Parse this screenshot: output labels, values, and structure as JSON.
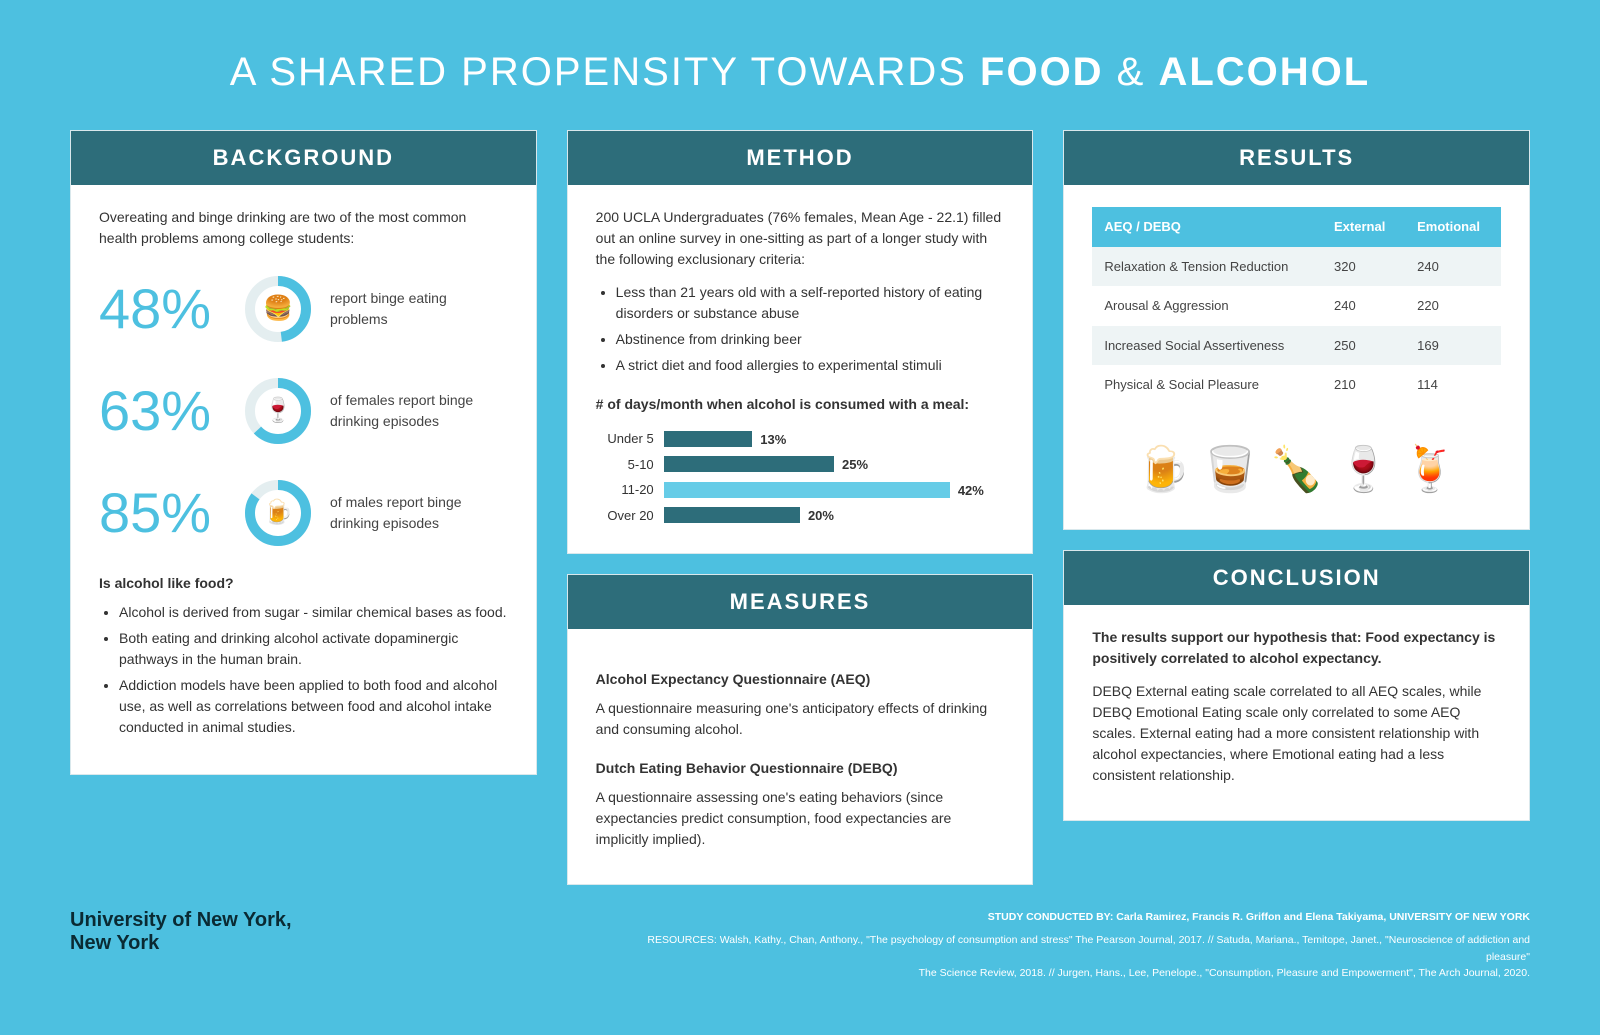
{
  "title_prefix": "A SHARED PROPENSITY TOWARDS ",
  "title_bold1": "FOOD",
  "title_amp": " & ",
  "title_bold2": "ALCOHOL",
  "colors": {
    "page_bg": "#4dc0e0",
    "header_bg": "#2d6d7a",
    "accent": "#4dc0e0",
    "bar_dark": "#2d6d7a",
    "bar_light": "#66cce7",
    "donut_ring": "#e4eef0"
  },
  "background": {
    "header": "BACKGROUND",
    "intro": "Overeating and binge drinking are two of the most common health problems among college students:",
    "stats": [
      {
        "value": "48%",
        "pct": 48,
        "icon": "🍔",
        "label": "report binge eating problems"
      },
      {
        "value": "63%",
        "pct": 63,
        "icon": "🍷",
        "label": "of females report binge drinking episodes"
      },
      {
        "value": "85%",
        "pct": 85,
        "icon": "🍺",
        "label": "of males report binge drinking episodes"
      }
    ],
    "question": "Is alcohol like food?",
    "points": [
      "Alcohol is derived from sugar - similar chemical bases as food.",
      "Both eating and drinking alcohol activate dopaminergic pathways in the human brain.",
      "Addiction models have been applied to both food and alcohol use, as well as correlations between food and alcohol intake conducted in animal studies."
    ]
  },
  "method": {
    "header": "METHOD",
    "intro": "200 UCLA Undergraduates (76% females, Mean Age - 22.1) filled out an online survey in one-sitting as part of a longer study with the following exclusionary criteria:",
    "criteria": [
      "Less than 21 years old with a self-reported history of eating disorders or substance abuse",
      "Abstinence from drinking beer",
      "A strict diet and food allergies to experimental stimuli"
    ],
    "chart_title": "# of days/month when alcohol is consumed with a meal:",
    "bars": [
      {
        "label": "Under 5",
        "value": 13,
        "color": "#2d6d7a"
      },
      {
        "label": "5-10",
        "value": 25,
        "color": "#2d6d7a"
      },
      {
        "label": "11-20",
        "value": 42,
        "color": "#66cce7"
      },
      {
        "label": "Over 20",
        "value": 20,
        "color": "#2d6d7a"
      }
    ],
    "bar_max": 50
  },
  "measures": {
    "header": "MEASURES",
    "items": [
      {
        "title": "Alcohol Expectancy Questionnaire (AEQ)",
        "desc": "A questionnaire measuring one's anticipatory effects of drinking and consuming alcohol."
      },
      {
        "title": "Dutch Eating Behavior Questionnaire (DEBQ)",
        "desc": "A questionnaire assessing one's eating behaviors (since expectancies predict consumption, food expectancies are implicitly implied)."
      }
    ]
  },
  "results": {
    "header": "RESULTS",
    "columns": [
      "AEQ / DEBQ",
      "External",
      "Emotional"
    ],
    "rows": [
      [
        "Relaxation & Tension Reduction",
        "320",
        "240"
      ],
      [
        "Arousal & Aggression",
        "240",
        "220"
      ],
      [
        "Increased Social Assertiveness",
        "250",
        "169"
      ],
      [
        "Physical & Social Pleasure",
        "210",
        "114"
      ]
    ],
    "icons": [
      "🍺",
      "🥃",
      "🍾",
      "🍷",
      "🍹"
    ]
  },
  "conclusion": {
    "header": "CONCLUSION",
    "lead_prefix": "The results support our hypothesis that: Food expectancy ",
    "lead_bold": "is positively correlated to alcohol expectancy.",
    "body": "DEBQ External eating scale correlated to all AEQ scales, while DEBQ Emotional Eating scale only correlated to some AEQ scales. External eating had a more consistent relationship with alcohol expectancies, where Emotional eating had a less consistent relationship."
  },
  "footer": {
    "university_l1": "University of New York,",
    "university_l2": "New York",
    "conducted": "STUDY CONDUCTED BY: Carla Ramirez, Francis R. Griffon and Elena Takiyama, UNIVERSITY OF NEW YORK",
    "resources_l1": "RESOURCES: Walsh, Kathy., Chan, Anthony., \"The psychology of consumption and stress\" The Pearson Journal, 2017. // Satuda, Mariana., Temitope, Janet., \"Neuroscience of addiction and pleasure\"",
    "resources_l2": "The Science Review, 2018. // Jurgen, Hans., Lee, Penelope., \"Consumption, Pleasure and Empowerment\", The Arch Journal, 2020."
  }
}
